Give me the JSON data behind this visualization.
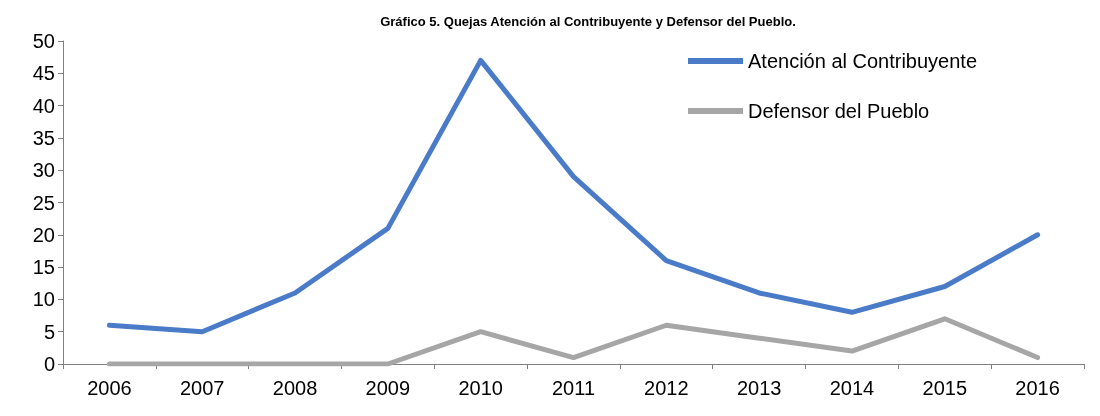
{
  "chart_data": {
    "type": "line",
    "title": "Gráfico 5. Quejas Atención al Contribuyente y Defensor del Pueblo.",
    "categories": [
      "2006",
      "2007",
      "2008",
      "2009",
      "2010",
      "2011",
      "2012",
      "2013",
      "2014",
      "2015",
      "2016"
    ],
    "series": [
      {
        "name": "Atención al Contribuyente",
        "color": "#4a7bc8",
        "values": [
          6,
          5,
          11,
          21,
          47,
          29,
          16,
          11,
          8,
          12,
          20
        ]
      },
      {
        "name": "Defensor del Pueblo",
        "color": "#a6a6a6",
        "values": [
          0,
          0,
          0,
          0,
          5,
          1,
          6,
          4,
          2,
          7,
          1
        ]
      }
    ],
    "ylim": [
      0,
      50
    ],
    "yticks": [
      0,
      5,
      10,
      15,
      20,
      25,
      30,
      35,
      40,
      45,
      50
    ],
    "legend": "top right",
    "marker": "none",
    "line_style": "solid"
  }
}
